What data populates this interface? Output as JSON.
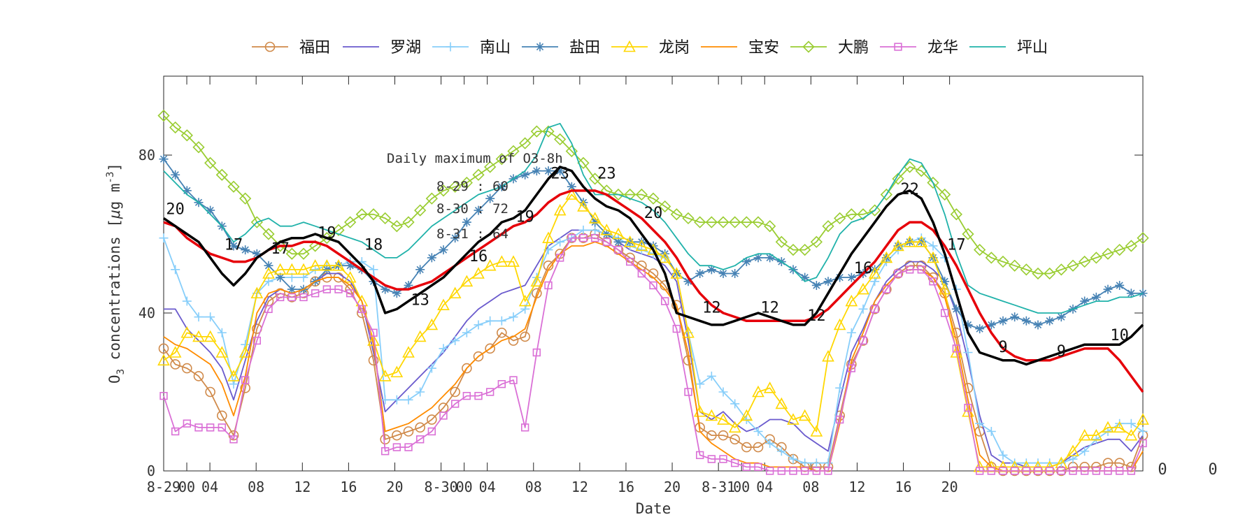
{
  "chart_data": {
    "type": "line",
    "xlabel": "Date",
    "ylabel_prefix": "O",
    "ylabel_sub": "3",
    "ylabel_mid": " concentrations [",
    "ylabel_mu": "μ",
    "ylabel_unit": "g m",
    "ylabel_exp": "-3",
    "ylabel_end": "]",
    "ylim": [
      0,
      100
    ],
    "yticks": [
      0,
      40,
      80
    ],
    "xlim": [
      0,
      71
    ],
    "x_tick_labels": [
      {
        "x": 0,
        "label": "8-29"
      },
      {
        "x": 2,
        "label": "00"
      },
      {
        "x": 4,
        "label": "04"
      },
      {
        "x": 8,
        "label": "08"
      },
      {
        "x": 12,
        "label": "12"
      },
      {
        "x": 16,
        "label": "16"
      },
      {
        "x": 20,
        "label": "20"
      },
      {
        "x": 24,
        "label": "8-30"
      },
      {
        "x": 26,
        "label": "00"
      },
      {
        "x": 28,
        "label": "04"
      },
      {
        "x": 32,
        "label": "08"
      },
      {
        "x": 36,
        "label": "12"
      },
      {
        "x": 40,
        "label": "16"
      },
      {
        "x": 44,
        "label": "20"
      },
      {
        "x": 48,
        "label": "8-31"
      },
      {
        "x": 50,
        "label": "00"
      },
      {
        "x": 52,
        "label": "04"
      },
      {
        "x": 56,
        "label": "08"
      },
      {
        "x": 60,
        "label": "12"
      },
      {
        "x": 64,
        "label": "16"
      },
      {
        "x": 68,
        "label": "20"
      }
    ],
    "overflow_labels": [
      "0",
      "0",
      "0"
    ],
    "legend_position": "top",
    "grid": false,
    "annotation": {
      "title": "Daily maximum of O3-8h",
      "lines": [
        "8-29 : 60",
        "8-30 : 72",
        "8-31 : 64"
      ]
    },
    "series": [
      {
        "name": "福田",
        "color": "#d08a4a",
        "marker": "circle",
        "values": [
          31,
          27,
          26,
          24,
          20,
          14,
          9,
          21,
          36,
          43,
          45,
          44,
          45,
          48,
          49,
          49,
          46,
          40,
          28,
          8,
          9,
          10,
          11,
          13,
          16,
          20,
          26,
          29,
          31,
          35,
          33,
          34,
          45,
          52,
          55,
          59,
          59,
          60,
          58,
          56,
          54,
          52,
          50,
          47,
          42,
          28,
          11,
          9,
          9,
          8,
          6,
          6,
          8,
          6,
          3,
          1,
          1,
          1,
          14,
          27,
          33,
          41,
          46,
          50,
          52,
          52,
          49,
          45,
          35,
          21,
          10,
          1,
          0,
          0,
          0,
          0,
          0,
          0,
          1,
          1,
          1,
          2,
          2,
          1,
          9
        ]
      },
      {
        "name": "罗湖",
        "color": "#6a5acd",
        "marker": "none",
        "values": [
          41,
          41,
          36,
          33,
          30,
          26,
          18,
          28,
          38,
          44,
          46,
          45,
          46,
          48,
          50,
          50,
          48,
          43,
          30,
          15,
          18,
          21,
          24,
          27,
          30,
          34,
          38,
          41,
          43,
          45,
          46,
          47,
          52,
          57,
          59,
          61,
          61,
          61,
          60,
          58,
          56,
          55,
          54,
          52,
          48,
          33,
          15,
          13,
          15,
          12,
          10,
          11,
          13,
          13,
          12,
          9,
          7,
          5,
          18,
          30,
          36,
          43,
          48,
          51,
          53,
          53,
          51,
          48,
          40,
          28,
          14,
          4,
          2,
          2,
          1,
          1,
          1,
          2,
          4,
          6,
          7,
          8,
          8,
          5,
          9
        ]
      },
      {
        "name": "南山",
        "color": "#87cefa",
        "marker": "plus",
        "values": [
          59,
          51,
          43,
          39,
          39,
          35,
          22,
          32,
          45,
          48,
          49,
          49,
          49,
          51,
          52,
          52,
          53,
          53,
          51,
          18,
          18,
          18,
          20,
          26,
          31,
          33,
          35,
          37,
          38,
          38,
          39,
          41,
          49,
          56,
          58,
          59,
          61,
          61,
          60,
          59,
          57,
          56,
          55,
          54,
          50,
          35,
          22,
          24,
          20,
          17,
          13,
          10,
          7,
          5,
          3,
          2,
          2,
          2,
          21,
          35,
          41,
          48,
          53,
          56,
          58,
          59,
          57,
          54,
          46,
          30,
          12,
          10,
          4,
          2,
          2,
          2,
          2,
          2,
          3,
          5,
          8,
          10,
          12,
          12,
          10
        ]
      },
      {
        "name": "盐田",
        "color": "#4682b4",
        "marker": "asterisk",
        "values": [
          79,
          75,
          71,
          68,
          66,
          62,
          57,
          56,
          55,
          52,
          49,
          46,
          46,
          48,
          51,
          52,
          52,
          51,
          48,
          46,
          45,
          47,
          51,
          54,
          56,
          59,
          63,
          66,
          69,
          72,
          74,
          75,
          76,
          76,
          76,
          72,
          68,
          63,
          60,
          58,
          58,
          58,
          57,
          55,
          50,
          48,
          50,
          51,
          50,
          50,
          53,
          54,
          54,
          53,
          51,
          49,
          47,
          48,
          49,
          49,
          50,
          51,
          54,
          57,
          58,
          58,
          54,
          48,
          41,
          37,
          36,
          37,
          38,
          39,
          38,
          37,
          38,
          39,
          41,
          43,
          44,
          46,
          47,
          45,
          45
        ]
      },
      {
        "name": "龙岗",
        "color": "#ffd700",
        "marker": "triangle",
        "values": [
          28,
          30,
          35,
          34,
          34,
          30,
          24,
          30,
          45,
          50,
          51,
          51,
          51,
          52,
          52,
          52,
          49,
          43,
          33,
          24,
          25,
          30,
          34,
          37,
          42,
          45,
          48,
          50,
          52,
          53,
          53,
          43,
          48,
          59,
          66,
          70,
          67,
          64,
          61,
          60,
          58,
          57,
          56,
          54,
          50,
          35,
          15,
          14,
          13,
          11,
          14,
          20,
          21,
          17,
          13,
          14,
          10,
          29,
          37,
          43,
          46,
          50,
          54,
          57,
          58,
          58,
          54,
          46,
          30,
          15,
          1,
          1,
          1,
          1,
          1,
          1,
          1,
          2,
          5,
          9,
          9,
          11,
          11,
          9,
          13
        ]
      },
      {
        "name": "宝安",
        "color": "#ff8c00",
        "marker": "none",
        "values": [
          34,
          32,
          31,
          29,
          27,
          22,
          14,
          24,
          40,
          45,
          46,
          45,
          46,
          48,
          49,
          49,
          47,
          43,
          32,
          10,
          11,
          12,
          14,
          16,
          19,
          22,
          26,
          29,
          31,
          33,
          34,
          36,
          44,
          51,
          55,
          57,
          57,
          58,
          57,
          55,
          53,
          51,
          49,
          46,
          42,
          30,
          10,
          7,
          5,
          3,
          2,
          2,
          1,
          1,
          1,
          1,
          0,
          0,
          12,
          28,
          35,
          43,
          47,
          50,
          51,
          51,
          49,
          44,
          33,
          18,
          4,
          1,
          0,
          0,
          0,
          0,
          0,
          0,
          0,
          0,
          0,
          0,
          0,
          0,
          5
        ]
      },
      {
        "name": "大鹏",
        "color": "#9acd32",
        "marker": "diamond",
        "values": [
          90,
          87,
          85,
          82,
          78,
          75,
          72,
          69,
          63,
          60,
          57,
          55,
          55,
          57,
          59,
          61,
          63,
          65,
          65,
          64,
          62,
          63,
          66,
          69,
          71,
          72,
          73,
          75,
          77,
          79,
          81,
          83,
          86,
          86,
          84,
          81,
          78,
          74,
          71,
          70,
          70,
          70,
          69,
          67,
          65,
          64,
          63,
          63,
          63,
          63,
          63,
          63,
          62,
          58,
          56,
          56,
          58,
          62,
          64,
          65,
          65,
          66,
          70,
          74,
          77,
          76,
          73,
          70,
          65,
          60,
          56,
          54,
          53,
          52,
          51,
          50,
          50,
          51,
          52,
          53,
          54,
          55,
          56,
          57,
          59
        ]
      },
      {
        "name": "龙华",
        "color": "#da70d6",
        "marker": "square",
        "values": [
          19,
          10,
          12,
          11,
          11,
          11,
          8,
          23,
          33,
          41,
          44,
          44,
          44,
          45,
          46,
          46,
          45,
          41,
          35,
          5,
          6,
          6,
          8,
          10,
          14,
          17,
          19,
          19,
          20,
          22,
          23,
          11,
          30,
          47,
          54,
          59,
          59,
          59,
          58,
          56,
          53,
          50,
          47,
          43,
          36,
          20,
          4,
          3,
          3,
          2,
          1,
          1,
          0,
          0,
          0,
          0,
          0,
          0,
          13,
          26,
          33,
          41,
          46,
          50,
          51,
          51,
          48,
          40,
          31,
          16,
          0,
          0,
          0,
          0,
          0,
          0,
          0,
          0,
          0,
          0,
          0,
          0,
          0,
          0,
          7
        ]
      },
      {
        "name": "坪山",
        "color": "#20b2aa",
        "marker": "none",
        "values": [
          76,
          73,
          70,
          68,
          65,
          62,
          58,
          60,
          63,
          64,
          62,
          62,
          63,
          62,
          61,
          60,
          59,
          58,
          56,
          54,
          54,
          56,
          59,
          62,
          64,
          66,
          68,
          70,
          71,
          72,
          74,
          76,
          80,
          87,
          88,
          83,
          75,
          70,
          70,
          70,
          69,
          68,
          66,
          63,
          59,
          55,
          52,
          52,
          51,
          52,
          54,
          55,
          55,
          53,
          51,
          48,
          49,
          54,
          60,
          63,
          64,
          66,
          70,
          75,
          79,
          78,
          73,
          65,
          55,
          47,
          45,
          44,
          43,
          42,
          41,
          40,
          40,
          40,
          41,
          42,
          43,
          43,
          44,
          44,
          45
        ]
      }
    ],
    "average_series": {
      "color": "#e6000a",
      "values": [
        63,
        62,
        59,
        57,
        55,
        54,
        53,
        53,
        54,
        56,
        57,
        57,
        58,
        58,
        57,
        55,
        53,
        51,
        49,
        47,
        46,
        46,
        47,
        48,
        50,
        52,
        54,
        56,
        58,
        60,
        62,
        63,
        65,
        68,
        70,
        71,
        71,
        71,
        70,
        68,
        66,
        64,
        61,
        58,
        54,
        49,
        45,
        42,
        40,
        39,
        38,
        38,
        38,
        38,
        38,
        38,
        39,
        41,
        44,
        47,
        50,
        53,
        57,
        61,
        63,
        63,
        61,
        57,
        52,
        46,
        40,
        35,
        31,
        29,
        28,
        28,
        28,
        29,
        30,
        31,
        31,
        31,
        28,
        24,
        20
      ]
    },
    "max_series": {
      "color": "#000000",
      "values": [
        64,
        62,
        60,
        58,
        54,
        50,
        47,
        50,
        54,
        56,
        58,
        59,
        59,
        60,
        59,
        58,
        55,
        52,
        48,
        40,
        41,
        43,
        45,
        47,
        49,
        52,
        55,
        58,
        60,
        63,
        64,
        66,
        70,
        74,
        77,
        76,
        72,
        69,
        67,
        66,
        64,
        60,
        56,
        50,
        40,
        39,
        38,
        37,
        37,
        38,
        39,
        40,
        39,
        38,
        37,
        37,
        40,
        45,
        50,
        55,
        59,
        63,
        67,
        70,
        71,
        69,
        63,
        55,
        45,
        35,
        30,
        29,
        28,
        28,
        27,
        28,
        29,
        30,
        31,
        32,
        32,
        32,
        32,
        34,
        37
      ]
    },
    "max_labels": [
      {
        "x": 1,
        "y": 64,
        "text": "20"
      },
      {
        "x": 6,
        "y": 55,
        "text": "17"
      },
      {
        "x": 10,
        "y": 54,
        "text": "17"
      },
      {
        "x": 14,
        "y": 58,
        "text": "19"
      },
      {
        "x": 18,
        "y": 55,
        "text": "18"
      },
      {
        "x": 22,
        "y": 41,
        "text": "13"
      },
      {
        "x": 27,
        "y": 52,
        "text": "16"
      },
      {
        "x": 31,
        "y": 62,
        "text": "19"
      },
      {
        "x": 34,
        "y": 73,
        "text": "23"
      },
      {
        "x": 38,
        "y": 73,
        "text": "23"
      },
      {
        "x": 42,
        "y": 63,
        "text": "20"
      },
      {
        "x": 47,
        "y": 39,
        "text": "12"
      },
      {
        "x": 52,
        "y": 39,
        "text": "12"
      },
      {
        "x": 56,
        "y": 37,
        "text": "12"
      },
      {
        "x": 60,
        "y": 49,
        "text": "16"
      },
      {
        "x": 64,
        "y": 69,
        "text": "22"
      },
      {
        "x": 68,
        "y": 55,
        "text": "17"
      },
      {
        "x": 72,
        "y": 29,
        "text": "9"
      },
      {
        "x": 77,
        "y": 28,
        "text": "9"
      },
      {
        "x": 82,
        "y": 32,
        "text": "10"
      }
    ]
  }
}
